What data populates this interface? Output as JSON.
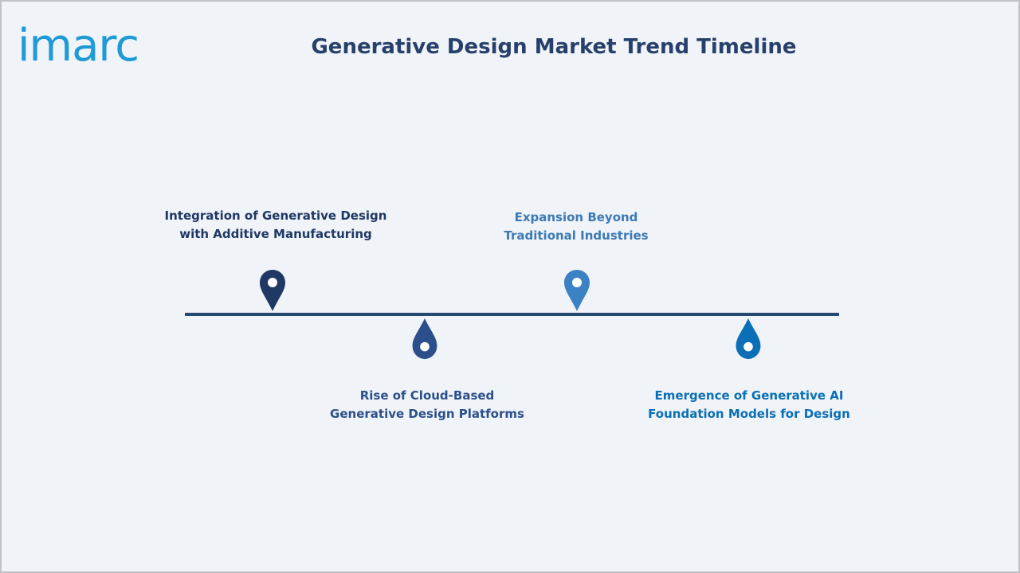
{
  "brand": {
    "logo_text": "imarc",
    "logo_color": "#1e9ad6"
  },
  "title": "Generative Design Market Trend Timeline",
  "colors": {
    "title": "#27406b",
    "axis": "#244a72",
    "milestone_1": "#1f3864",
    "milestone_2": "#2b4f8a",
    "milestone_3": "#3b82c4",
    "milestone_4": "#0a6fb6",
    "label_1": "#1f3864",
    "label_2": "#2b4f8a",
    "label_3": "#3b7ab5",
    "label_4": "#0a6fb6"
  },
  "milestones": [
    {
      "line1": "Integration of Generative Design",
      "line2": "with Additive Manufacturing",
      "icon": "map-pin-icon",
      "side": "above"
    },
    {
      "line1": "Rise of Cloud-Based",
      "line2": "Generative Design Platforms",
      "icon": "drop-pin-icon",
      "side": "below"
    },
    {
      "line1": "Expansion Beyond",
      "line2": "Traditional Industries",
      "icon": "map-pin-icon",
      "side": "above"
    },
    {
      "line1": "Emergence of Generative AI",
      "line2": "Foundation Models for Design",
      "icon": "drop-pin-icon",
      "side": "below"
    }
  ]
}
